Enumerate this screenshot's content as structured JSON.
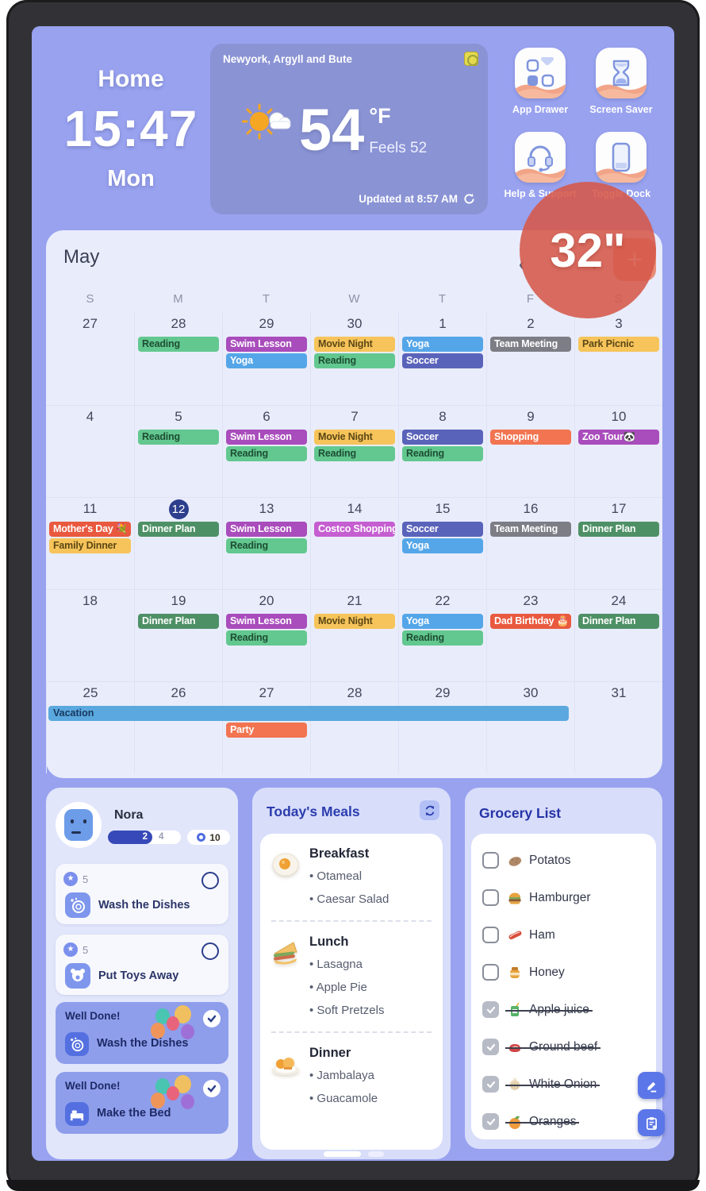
{
  "device": {
    "size_badge": "32\""
  },
  "header": {
    "room_label": "Home",
    "time": "15:47",
    "weekday": "Mon"
  },
  "weather": {
    "location": "Newyork, Argyll and Bute",
    "temperature": "54",
    "unit": "°F",
    "feels_like": "Feels 52",
    "updated": "Updated at 8:57 AM"
  },
  "shortcuts": [
    {
      "label": "App Drawer"
    },
    {
      "label": "Screen Saver"
    },
    {
      "label": "Help & Support"
    },
    {
      "label": "Toggle Dock"
    }
  ],
  "calendar": {
    "month": "May",
    "add_label": "+",
    "day_headers": [
      "S",
      "M",
      "T",
      "W",
      "T",
      "F",
      "S"
    ],
    "event_colors": {
      "green": {
        "bg": "#62c88f",
        "text": "#1e4d33"
      },
      "dkgreen": {
        "bg": "#4e9065",
        "text": "#ffffff"
      },
      "purple": {
        "bg": "#a94cbc",
        "text": "#ffffff"
      },
      "magenta": {
        "bg": "#c55ed0",
        "text": "#ffffff"
      },
      "blue": {
        "bg": "#55a6e8",
        "text": "#ffffff"
      },
      "skyblue": {
        "bg": "#5aa8de",
        "text": "#17375e"
      },
      "amber": {
        "bg": "#f6c45a",
        "text": "#5c4716"
      },
      "indigo": {
        "bg": "#5a63ba",
        "text": "#ffffff"
      },
      "gray": {
        "bg": "#7c7d85",
        "text": "#ffffff"
      },
      "orange": {
        "bg": "#f27451",
        "text": "#ffffff"
      },
      "red": {
        "bg": "#e9593f",
        "text": "#ffffff"
      }
    },
    "weeks": [
      {
        "days": [
          {
            "date": "27"
          },
          {
            "date": "28",
            "events": [
              {
                "label": "Reading",
                "color": "green"
              }
            ]
          },
          {
            "date": "29",
            "events": [
              {
                "label": "Swim Lesson",
                "color": "purple"
              },
              {
                "label": "Yoga",
                "color": "blue"
              }
            ]
          },
          {
            "date": "30",
            "events": [
              {
                "label": "Movie Night",
                "color": "amber"
              },
              {
                "label": "Reading",
                "color": "green"
              }
            ]
          },
          {
            "date": "1",
            "events": [
              {
                "label": "Yoga",
                "color": "blue"
              },
              {
                "label": "Soccer",
                "color": "indigo"
              }
            ]
          },
          {
            "date": "2",
            "events": [
              {
                "label": "Team Meeting",
                "color": "gray"
              }
            ]
          },
          {
            "date": "3",
            "events": [
              {
                "label": "Park Picnic",
                "color": "amber"
              }
            ]
          }
        ]
      },
      {
        "days": [
          {
            "date": "4"
          },
          {
            "date": "5",
            "events": [
              {
                "label": "Reading",
                "color": "green"
              }
            ]
          },
          {
            "date": "6",
            "events": [
              {
                "label": "Swim Lesson",
                "color": "purple"
              },
              {
                "label": "Reading",
                "color": "green"
              }
            ]
          },
          {
            "date": "7",
            "events": [
              {
                "label": "Movie Night",
                "color": "amber"
              },
              {
                "label": "Reading",
                "color": "green"
              }
            ]
          },
          {
            "date": "8",
            "events": [
              {
                "label": "Soccer",
                "color": "indigo"
              },
              {
                "label": "Reading",
                "color": "green"
              }
            ]
          },
          {
            "date": "9",
            "events": [
              {
                "label": "Shopping",
                "color": "orange"
              }
            ]
          },
          {
            "date": "10",
            "events": [
              {
                "label": "Zoo Tour🐼",
                "color": "purple"
              }
            ]
          }
        ]
      },
      {
        "days": [
          {
            "date": "11",
            "events": [
              {
                "label": "Mother's Day 💐",
                "color": "red"
              },
              {
                "label": "Family Dinner",
                "color": "amber"
              }
            ]
          },
          {
            "date": "12",
            "today": true,
            "events": [
              {
                "label": "Dinner Plan",
                "color": "dkgreen"
              }
            ]
          },
          {
            "date": "13",
            "events": [
              {
                "label": "Swim Lesson",
                "color": "purple"
              },
              {
                "label": "Reading",
                "color": "green"
              }
            ]
          },
          {
            "date": "14",
            "events": [
              {
                "label": "Costco Shopping",
                "color": "magenta"
              }
            ]
          },
          {
            "date": "15",
            "events": [
              {
                "label": "Soccer",
                "color": "indigo"
              },
              {
                "label": "Yoga",
                "color": "blue"
              }
            ]
          },
          {
            "date": "16",
            "events": [
              {
                "label": "Team Meeting",
                "color": "gray"
              }
            ]
          },
          {
            "date": "17",
            "events": [
              {
                "label": "Dinner Plan",
                "color": "dkgreen"
              }
            ]
          }
        ]
      },
      {
        "days": [
          {
            "date": "18"
          },
          {
            "date": "19",
            "events": [
              {
                "label": "Dinner Plan",
                "color": "dkgreen"
              }
            ]
          },
          {
            "date": "20",
            "events": [
              {
                "label": "Swim Lesson",
                "color": "purple"
              },
              {
                "label": "Reading",
                "color": "green"
              }
            ]
          },
          {
            "date": "21",
            "events": [
              {
                "label": "Movie Night",
                "color": "amber"
              }
            ]
          },
          {
            "date": "22",
            "events": [
              {
                "label": "Yoga",
                "color": "blue"
              },
              {
                "label": "Reading",
                "color": "green"
              }
            ]
          },
          {
            "date": "23",
            "events": [
              {
                "label": "Dad Birthday 🎂",
                "color": "red"
              }
            ]
          },
          {
            "date": "24",
            "events": [
              {
                "label": "Dinner Plan",
                "color": "dkgreen"
              }
            ]
          }
        ]
      },
      {
        "span_event": {
          "label": "Vacation",
          "color": "skyblue",
          "start": 0,
          "span": 6
        },
        "days": [
          {
            "date": "25"
          },
          {
            "date": "26"
          },
          {
            "date": "27",
            "events": [
              {
                "label": "Party",
                "color": "orange",
                "slot": 1
              }
            ]
          },
          {
            "date": "28"
          },
          {
            "date": "29"
          },
          {
            "date": "30"
          },
          {
            "date": "31"
          }
        ]
      }
    ]
  },
  "profile": {
    "name": "Nora",
    "progress_done": "2",
    "progress_total": "4",
    "points": "10",
    "chores_pending": [
      {
        "points": "5",
        "title": "Wash the Dishes",
        "icon": "dishes"
      },
      {
        "points": "5",
        "title": "Put Toys Away",
        "icon": "teddy"
      }
    ],
    "chores_done": [
      {
        "banner": "Well Done!",
        "title": "Wash the Dishes",
        "icon": "dishes"
      },
      {
        "banner": "Well Done!",
        "title": "Make the Bed",
        "icon": "bed"
      }
    ]
  },
  "meals": {
    "title": "Today's Meals",
    "sections": [
      {
        "name": "Breakfast",
        "icon": "egg",
        "items": [
          "Otameal",
          "Caesar Salad"
        ]
      },
      {
        "name": "Lunch",
        "icon": "sandwich",
        "items": [
          "Lasagna",
          "Apple Pie",
          "Soft Pretzels"
        ]
      },
      {
        "name": "Dinner",
        "icon": "dinner",
        "items": [
          "Jambalaya",
          "Guacamole"
        ]
      }
    ]
  },
  "grocery": {
    "title": "Grocery List",
    "items": [
      {
        "label": "Potatos",
        "icon": "potato",
        "checked": false
      },
      {
        "label": "Hamburger",
        "icon": "hamburger",
        "checked": false
      },
      {
        "label": "Ham",
        "icon": "ham",
        "checked": false
      },
      {
        "label": "Honey",
        "icon": "honey",
        "checked": false
      },
      {
        "label": "Apple juice",
        "icon": "apple-juice",
        "checked": true
      },
      {
        "label": "Ground beef",
        "icon": "ground-beef",
        "checked": true
      },
      {
        "label": "White Onion",
        "icon": "white-onion",
        "checked": true
      },
      {
        "label": "Oranges",
        "icon": "oranges",
        "checked": true
      }
    ]
  },
  "colors": {
    "screen_bg": "#98a2ef",
    "accent_blue": "#5b76e8",
    "badge_red": "#d5594a",
    "navy": "#2c3e8c"
  }
}
